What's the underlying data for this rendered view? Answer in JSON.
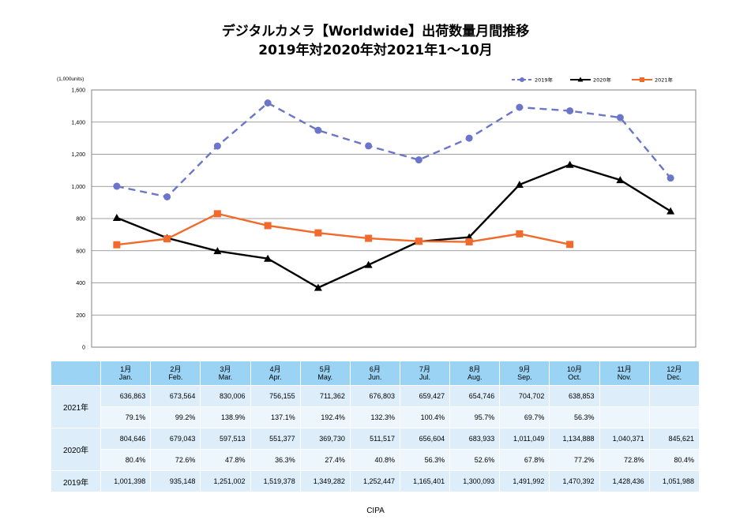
{
  "title_line1": "デジタルカメラ【Worldwide】出荷数量月間推移",
  "title_line2": "2019年対2020年対2021年1～10月",
  "footer": "CIPA",
  "chart_data": {
    "type": "line",
    "unit_label": "(1,000units)",
    "ylim": [
      0,
      1600
    ],
    "yticks": [
      "0",
      "200",
      "400",
      "600",
      "800",
      "1,000",
      "1,200",
      "1,400",
      "1,600"
    ],
    "grid": true,
    "legend_position": "top-right",
    "categories_ja": [
      "1月",
      "2月",
      "3月",
      "4月",
      "5月",
      "6月",
      "7月",
      "8月",
      "9月",
      "10月",
      "11月",
      "12月"
    ],
    "categories_en": [
      "Jan.",
      "Feb.",
      "Mar.",
      "Apr.",
      "May.",
      "Jun.",
      "Jul.",
      "Aug.",
      "Sep.",
      "Oct.",
      "Nov.",
      "Dec."
    ],
    "series": [
      {
        "name": "2019年",
        "color": "#6b75c9",
        "style": "dashed-circle",
        "values": [
          1001,
          935,
          1251,
          1519,
          1349,
          1252,
          1165,
          1300,
          1492,
          1470,
          1428,
          1052
        ]
      },
      {
        "name": "2020年",
        "color": "#000000",
        "style": "solid-triangle",
        "values": [
          805,
          679,
          598,
          551,
          370,
          512,
          657,
          684,
          1011,
          1135,
          1040,
          846
        ]
      },
      {
        "name": "2021年",
        "color": "#f26a2b",
        "style": "solid-square",
        "values": [
          637,
          674,
          830,
          756,
          711,
          677,
          659,
          655,
          705,
          639
        ]
      }
    ]
  },
  "table": {
    "rows": [
      {
        "label": "2021年",
        "units": [
          "636,863",
          "673,564",
          "830,006",
          "756,155",
          "711,362",
          "676,803",
          "659,427",
          "654,746",
          "704,702",
          "638,853",
          "",
          ""
        ],
        "ratio": [
          "79.1%",
          "99.2%",
          "138.9%",
          "137.1%",
          "192.4%",
          "132.3%",
          "100.4%",
          "95.7%",
          "69.7%",
          "56.3%",
          "",
          ""
        ]
      },
      {
        "label": "2020年",
        "units": [
          "804,646",
          "679,043",
          "597,513",
          "551,377",
          "369,730",
          "511,517",
          "656,604",
          "683,933",
          "1,011,049",
          "1,134,888",
          "1,040,371",
          "845,621"
        ],
        "ratio": [
          "80.4%",
          "72.6%",
          "47.8%",
          "36.3%",
          "27.4%",
          "40.8%",
          "56.3%",
          "52.6%",
          "67.8%",
          "77.2%",
          "72.8%",
          "80.4%"
        ]
      },
      {
        "label": "2019年",
        "units": [
          "1,001,398",
          "935,148",
          "1,251,002",
          "1,519,378",
          "1,349,282",
          "1,252,447",
          "1,165,401",
          "1,300,093",
          "1,491,992",
          "1,470,392",
          "1,428,436",
          "1,051,988"
        ]
      }
    ]
  }
}
